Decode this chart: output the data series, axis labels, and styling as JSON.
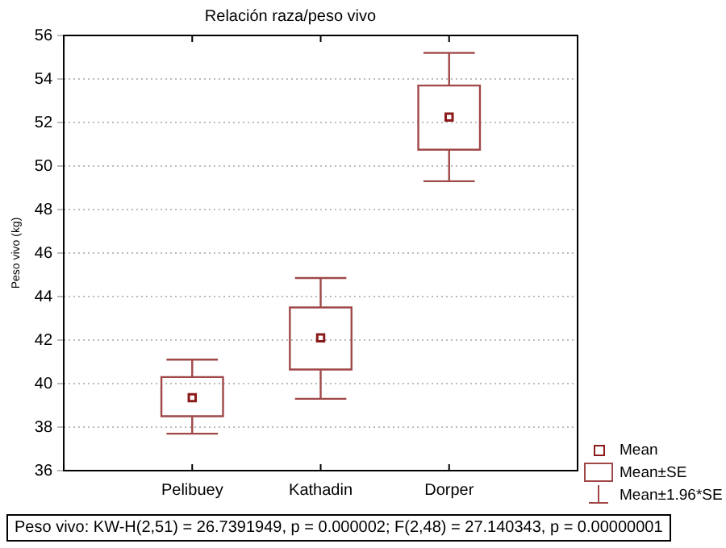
{
  "chart_data": {
    "type": "box",
    "title": "Relación raza/peso vivo",
    "ylabel": "Peso vivo (kg)",
    "categories": [
      null,
      "Pelibuey",
      "Kathadin",
      "Dorper",
      null
    ],
    "boxes": [
      null,
      {
        "low": 37.7,
        "q1": 38.5,
        "median": 39.35,
        "q3": 40.3,
        "high": 41.1
      },
      {
        "low": 39.3,
        "q1": 40.65,
        "median": 42.1,
        "q3": 43.5,
        "high": 44.85
      },
      {
        "low": 49.3,
        "q1": 50.75,
        "median": 52.25,
        "q3": 53.7,
        "high": 55.2
      },
      null
    ],
    "color": "#a04848",
    "marker": "square",
    "ylim": [
      36,
      56
    ],
    "yticks": [
      36,
      38,
      40,
      42,
      44,
      46,
      48,
      50,
      52,
      54,
      56
    ],
    "grid": "y",
    "annotations": [
      "Mean",
      "Mean±SE",
      "Mean±1.96*SE",
      "Peso vivo:  KW-H(2,51) = 26.7391949, p = 0.000002;  F(2,48) = 27.140343, p = 0.00000001"
    ]
  }
}
